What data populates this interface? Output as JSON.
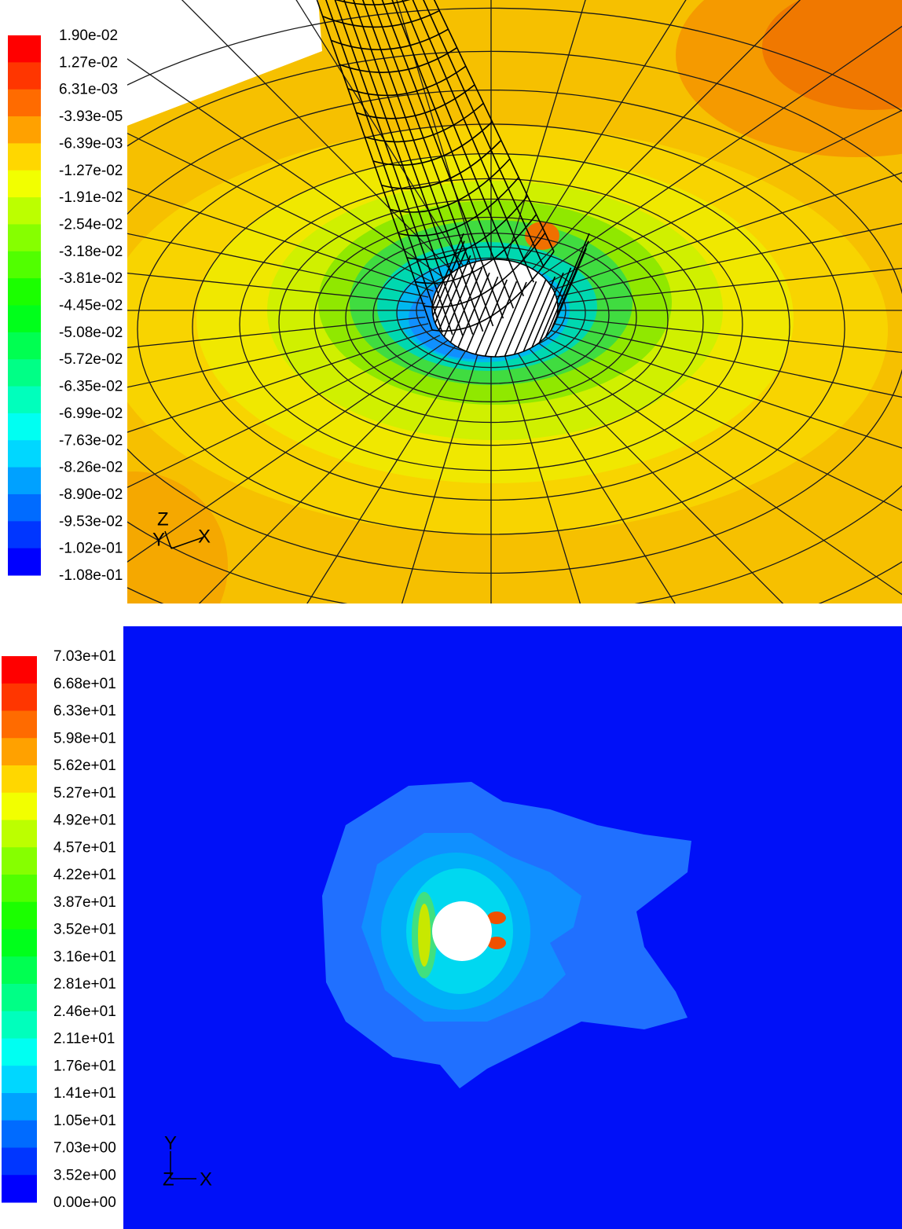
{
  "top_panel": {
    "legend_labels": [
      "1.90e-02",
      "1.27e-02",
      "6.31e-03",
      "-3.93e-05",
      "-6.39e-03",
      "-1.27e-02",
      "-1.91e-02",
      "-2.54e-02",
      "-3.18e-02",
      "-3.81e-02",
      "-4.45e-02",
      "-5.08e-02",
      "-5.72e-02",
      "-6.35e-02",
      "-6.99e-02",
      "-7.63e-02",
      "-8.26e-02",
      "-8.90e-02",
      "-9.53e-02",
      "-1.02e-01",
      "-1.08e-01"
    ],
    "axes": {
      "z": "Z",
      "y": "Y",
      "x": "X"
    }
  },
  "bottom_panel": {
    "legend_labels": [
      "7.03e+01",
      "6.68e+01",
      "6.33e+01",
      "5.98e+01",
      "5.62e+01",
      "5.27e+01",
      "4.92e+01",
      "4.57e+01",
      "4.22e+01",
      "3.87e+01",
      "3.52e+01",
      "3.16e+01",
      "2.81e+01",
      "2.46e+01",
      "2.11e+01",
      "1.76e+01",
      "1.41e+01",
      "1.05e+01",
      "7.03e+00",
      "3.52e+00",
      "0.00e+00"
    ],
    "axes": {
      "y": "Y",
      "z": "Z",
      "x": "X"
    }
  }
}
